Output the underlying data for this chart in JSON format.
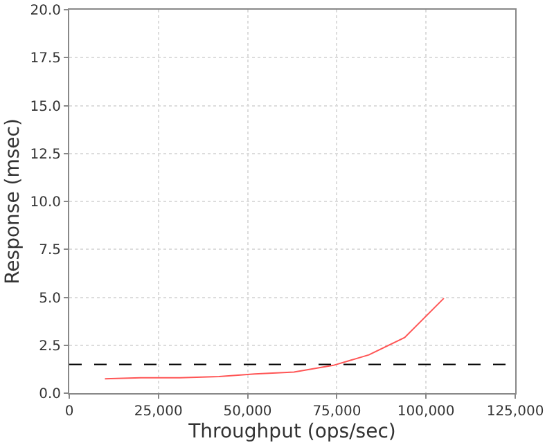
{
  "chart_data": {
    "type": "line",
    "xlabel": "Throughput (ops/sec)",
    "ylabel": "Response (msec)",
    "x": [
      10000,
      20000,
      31000,
      42000,
      52000,
      63000,
      74000,
      84000,
      94000,
      105000
    ],
    "series": [
      {
        "color": "#ff5555",
        "values": [
          0.75,
          0.8,
          0.8,
          0.87,
          1.0,
          1.1,
          1.45,
          2.0,
          2.9,
          4.95
        ]
      }
    ],
    "xlim": [
      0,
      125000
    ],
    "xticks": [
      {
        "value": 0,
        "label": "0"
      },
      {
        "value": 25000,
        "label": "25,000"
      },
      {
        "value": 50000,
        "label": "50,000"
      },
      {
        "value": 75000,
        "label": "75,000"
      },
      {
        "value": 100000,
        "label": "100,000"
      },
      {
        "value": 125000,
        "label": "125,000"
      }
    ],
    "ylim": [
      0,
      20
    ],
    "yticks": [
      {
        "value": 0,
        "label": "0.0"
      },
      {
        "value": 2.5,
        "label": "2.5"
      },
      {
        "value": 5,
        "label": "5.0"
      },
      {
        "value": 7.5,
        "label": "7.5"
      },
      {
        "value": 10,
        "label": "10.0"
      },
      {
        "value": 12.5,
        "label": "12.5"
      },
      {
        "value": 15,
        "label": "15.0"
      },
      {
        "value": 17.5,
        "label": "17.5"
      },
      {
        "value": 20,
        "label": "20.0"
      }
    ],
    "grid": true,
    "marker": "none",
    "line_style": "solid",
    "ref_lines": [
      {
        "axis": "y",
        "value": 1.5,
        "color": "#000000",
        "line_style": "dashed"
      }
    ]
  }
}
